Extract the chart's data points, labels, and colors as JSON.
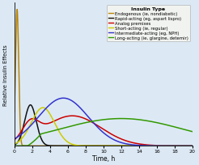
{
  "title": "",
  "xlabel": "Time, h",
  "ylabel": "Relative Insulin Effects",
  "xlim": [
    0,
    20
  ],
  "ylim": [
    0,
    1.05
  ],
  "xticks": [
    0,
    2,
    4,
    6,
    8,
    10,
    12,
    14,
    16,
    18,
    20
  ],
  "background_color": "#dce9f5",
  "legend_title": "Insulin Type",
  "legend_entries": [
    "Endogenous (ie, nondiabetic)",
    "Rapid-acting (eg, aspart lispro)",
    "Analog premixes",
    "Short-acting (ie, regular)",
    "Intermediate-acting (eg, NPH)",
    "Long-acting (ie, glargine, detemir)"
  ],
  "legend_colors": [
    "#b8860b",
    "#111111",
    "#cc0000",
    "#cccc00",
    "#3333cc",
    "#339900"
  ],
  "endogenous": {
    "mu": 0.3,
    "sigma": 0.18,
    "amp": 1.0
  },
  "rapid": {
    "mu": 1.8,
    "sigma": 0.65,
    "amp": 0.3
  },
  "analog_premix": [
    {
      "mu": 1.8,
      "sigma": 0.9,
      "amp": 0.12
    },
    {
      "mu": 6.5,
      "sigma": 3.2,
      "amp": 0.22
    }
  ],
  "short_acting": {
    "mu": 3.2,
    "sigma": 1.3,
    "amp": 0.28
  },
  "intermediate": {
    "mu": 5.5,
    "sigma": 2.8,
    "amp": 0.35
  },
  "long_acting": {
    "mu": 12.0,
    "sigma": 7.0,
    "amp": 0.2
  }
}
